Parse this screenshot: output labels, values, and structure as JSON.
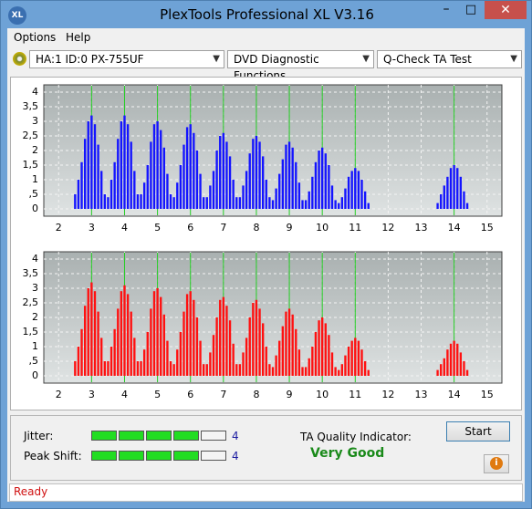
{
  "window": {
    "title": "PlexTools Professional XL V3.16",
    "icon": "XL"
  },
  "menu": [
    "Options",
    "Help"
  ],
  "toolbar": {
    "drive": "HA:1 ID:0  PX-755UF",
    "function": "DVD Diagnostic Functions",
    "test": "Q-Check TA Test"
  },
  "chart_data": [
    {
      "type": "bar",
      "color": "#1414ff",
      "reference_color": "#22cc22",
      "reference_lines": [
        3,
        4,
        5,
        6,
        7,
        8,
        9,
        10,
        11,
        14
      ],
      "x": [
        2.5,
        2.6,
        2.7,
        2.8,
        2.9,
        3,
        3.1,
        3.2,
        3.3,
        3.4,
        3.5,
        3.6,
        3.7,
        3.8,
        3.9,
        4,
        4.1,
        4.2,
        4.3,
        4.4,
        4.5,
        4.6,
        4.7,
        4.8,
        4.9,
        5,
        5.1,
        5.2,
        5.3,
        5.4,
        5.5,
        5.6,
        5.7,
        5.8,
        5.9,
        6,
        6.1,
        6.2,
        6.3,
        6.4,
        6.5,
        6.6,
        6.7,
        6.8,
        6.9,
        7,
        7.1,
        7.2,
        7.3,
        7.4,
        7.5,
        7.6,
        7.7,
        7.8,
        7.9,
        8,
        8.1,
        8.2,
        8.3,
        8.4,
        8.5,
        8.6,
        8.7,
        8.8,
        8.9,
        9,
        9.1,
        9.2,
        9.3,
        9.4,
        9.5,
        9.6,
        9.7,
        9.8,
        9.9,
        10,
        10.1,
        10.2,
        10.3,
        10.4,
        10.5,
        10.6,
        10.7,
        10.8,
        10.9,
        11,
        11.1,
        11.2,
        11.3,
        11.4,
        13.5,
        13.6,
        13.7,
        13.8,
        13.9,
        14,
        14.1,
        14.2,
        14.3,
        14.4
      ],
      "values": [
        0.5,
        1.0,
        1.6,
        2.4,
        3.0,
        3.2,
        2.9,
        2.2,
        1.3,
        0.5,
        0.4,
        1.0,
        1.6,
        2.4,
        3.0,
        3.2,
        2.9,
        2.3,
        1.3,
        0.5,
        0.5,
        0.9,
        1.5,
        2.3,
        2.9,
        3.0,
        2.7,
        2.1,
        1.2,
        0.5,
        0.4,
        0.9,
        1.5,
        2.2,
        2.8,
        2.9,
        2.6,
        2.0,
        1.2,
        0.4,
        0.4,
        0.8,
        1.3,
        2.0,
        2.5,
        2.6,
        2.3,
        1.8,
        1.0,
        0.4,
        0.4,
        0.8,
        1.3,
        1.9,
        2.4,
        2.5,
        2.3,
        1.8,
        1.0,
        0.4,
        0.3,
        0.7,
        1.2,
        1.7,
        2.2,
        2.3,
        2.1,
        1.6,
        0.9,
        0.3,
        0.3,
        0.6,
        1.1,
        1.6,
        2.0,
        2.1,
        1.9,
        1.5,
        0.8,
        0.3,
        0.2,
        0.4,
        0.7,
        1.1,
        1.3,
        1.4,
        1.3,
        1.0,
        0.6,
        0.2,
        0.2,
        0.5,
        0.8,
        1.1,
        1.4,
        1.5,
        1.4,
        1.1,
        0.6,
        0.2
      ],
      "xlim": [
        1.55,
        15.45
      ],
      "ylim": [
        -0.25,
        4.25
      ],
      "xticks": [
        2,
        3,
        4,
        5,
        6,
        7,
        8,
        9,
        10,
        11,
        12,
        13,
        14,
        15
      ],
      "yticks": [
        0,
        {
          "value": 0.5,
          "label": ",5"
        },
        1,
        {
          "value": 1.5,
          "label": "1,5"
        },
        2,
        {
          "value": 2.5,
          "label": "2,5"
        },
        3,
        {
          "value": 3.5,
          "label": "3,5"
        },
        4
      ],
      "grid": true
    },
    {
      "type": "bar",
      "color": "#ff1010",
      "reference_color": "#22cc22",
      "reference_lines": [
        3,
        4,
        5,
        6,
        7,
        8,
        9,
        10,
        11,
        14
      ],
      "x": [
        2.5,
        2.6,
        2.7,
        2.8,
        2.9,
        3,
        3.1,
        3.2,
        3.3,
        3.4,
        3.5,
        3.6,
        3.7,
        3.8,
        3.9,
        4,
        4.1,
        4.2,
        4.3,
        4.4,
        4.5,
        4.6,
        4.7,
        4.8,
        4.9,
        5,
        5.1,
        5.2,
        5.3,
        5.4,
        5.5,
        5.6,
        5.7,
        5.8,
        5.9,
        6,
        6.1,
        6.2,
        6.3,
        6.4,
        6.5,
        6.6,
        6.7,
        6.8,
        6.9,
        7,
        7.1,
        7.2,
        7.3,
        7.4,
        7.5,
        7.6,
        7.7,
        7.8,
        7.9,
        8,
        8.1,
        8.2,
        8.3,
        8.4,
        8.5,
        8.6,
        8.7,
        8.8,
        8.9,
        9,
        9.1,
        9.2,
        9.3,
        9.4,
        9.5,
        9.6,
        9.7,
        9.8,
        9.9,
        10,
        10.1,
        10.2,
        10.3,
        10.4,
        10.5,
        10.6,
        10.7,
        10.8,
        10.9,
        11,
        11.1,
        11.2,
        11.3,
        11.4,
        13.5,
        13.6,
        13.7,
        13.8,
        13.9,
        14,
        14.1,
        14.2,
        14.3,
        14.4
      ],
      "values": [
        0.5,
        1.0,
        1.6,
        2.4,
        3.0,
        3.2,
        2.9,
        2.2,
        1.3,
        0.5,
        0.5,
        1.0,
        1.6,
        2.3,
        2.9,
        3.1,
        2.8,
        2.2,
        1.3,
        0.5,
        0.5,
        0.9,
        1.5,
        2.3,
        2.9,
        3.0,
        2.7,
        2.1,
        1.2,
        0.5,
        0.4,
        0.9,
        1.5,
        2.2,
        2.8,
        2.9,
        2.6,
        2.0,
        1.2,
        0.4,
        0.4,
        0.8,
        1.4,
        2.0,
        2.6,
        2.7,
        2.4,
        1.9,
        1.1,
        0.4,
        0.4,
        0.8,
        1.3,
        2.0,
        2.5,
        2.6,
        2.3,
        1.8,
        1.0,
        0.4,
        0.3,
        0.7,
        1.2,
        1.7,
        2.2,
        2.3,
        2.1,
        1.6,
        0.9,
        0.3,
        0.3,
        0.6,
        1.0,
        1.5,
        1.9,
        2.0,
        1.8,
        1.4,
        0.8,
        0.3,
        0.2,
        0.4,
        0.7,
        1.0,
        1.2,
        1.3,
        1.2,
        0.9,
        0.5,
        0.2,
        0.2,
        0.4,
        0.6,
        0.9,
        1.1,
        1.2,
        1.1,
        0.8,
        0.5,
        0.2
      ],
      "xlim": [
        1.55,
        15.45
      ],
      "ylim": [
        -0.25,
        4.25
      ],
      "xticks": [
        2,
        3,
        4,
        5,
        6,
        7,
        8,
        9,
        10,
        11,
        12,
        13,
        14,
        15
      ],
      "yticks": [
        0,
        {
          "value": 0.5,
          "label": ",5"
        },
        1,
        {
          "value": 1.5,
          "label": "1,5"
        },
        2,
        {
          "value": 2.5,
          "label": "2,5"
        },
        3,
        {
          "value": 3.5,
          "label": "3,5"
        },
        4
      ],
      "grid": true
    }
  ],
  "ratings": [
    {
      "label": "Jitter:",
      "value": 4
    },
    {
      "label": "Peak Shift:",
      "value": 4
    }
  ],
  "quality": {
    "label": "TA Quality Indicator:",
    "value": "Very Good"
  },
  "start_button": "Start",
  "status": "Ready"
}
